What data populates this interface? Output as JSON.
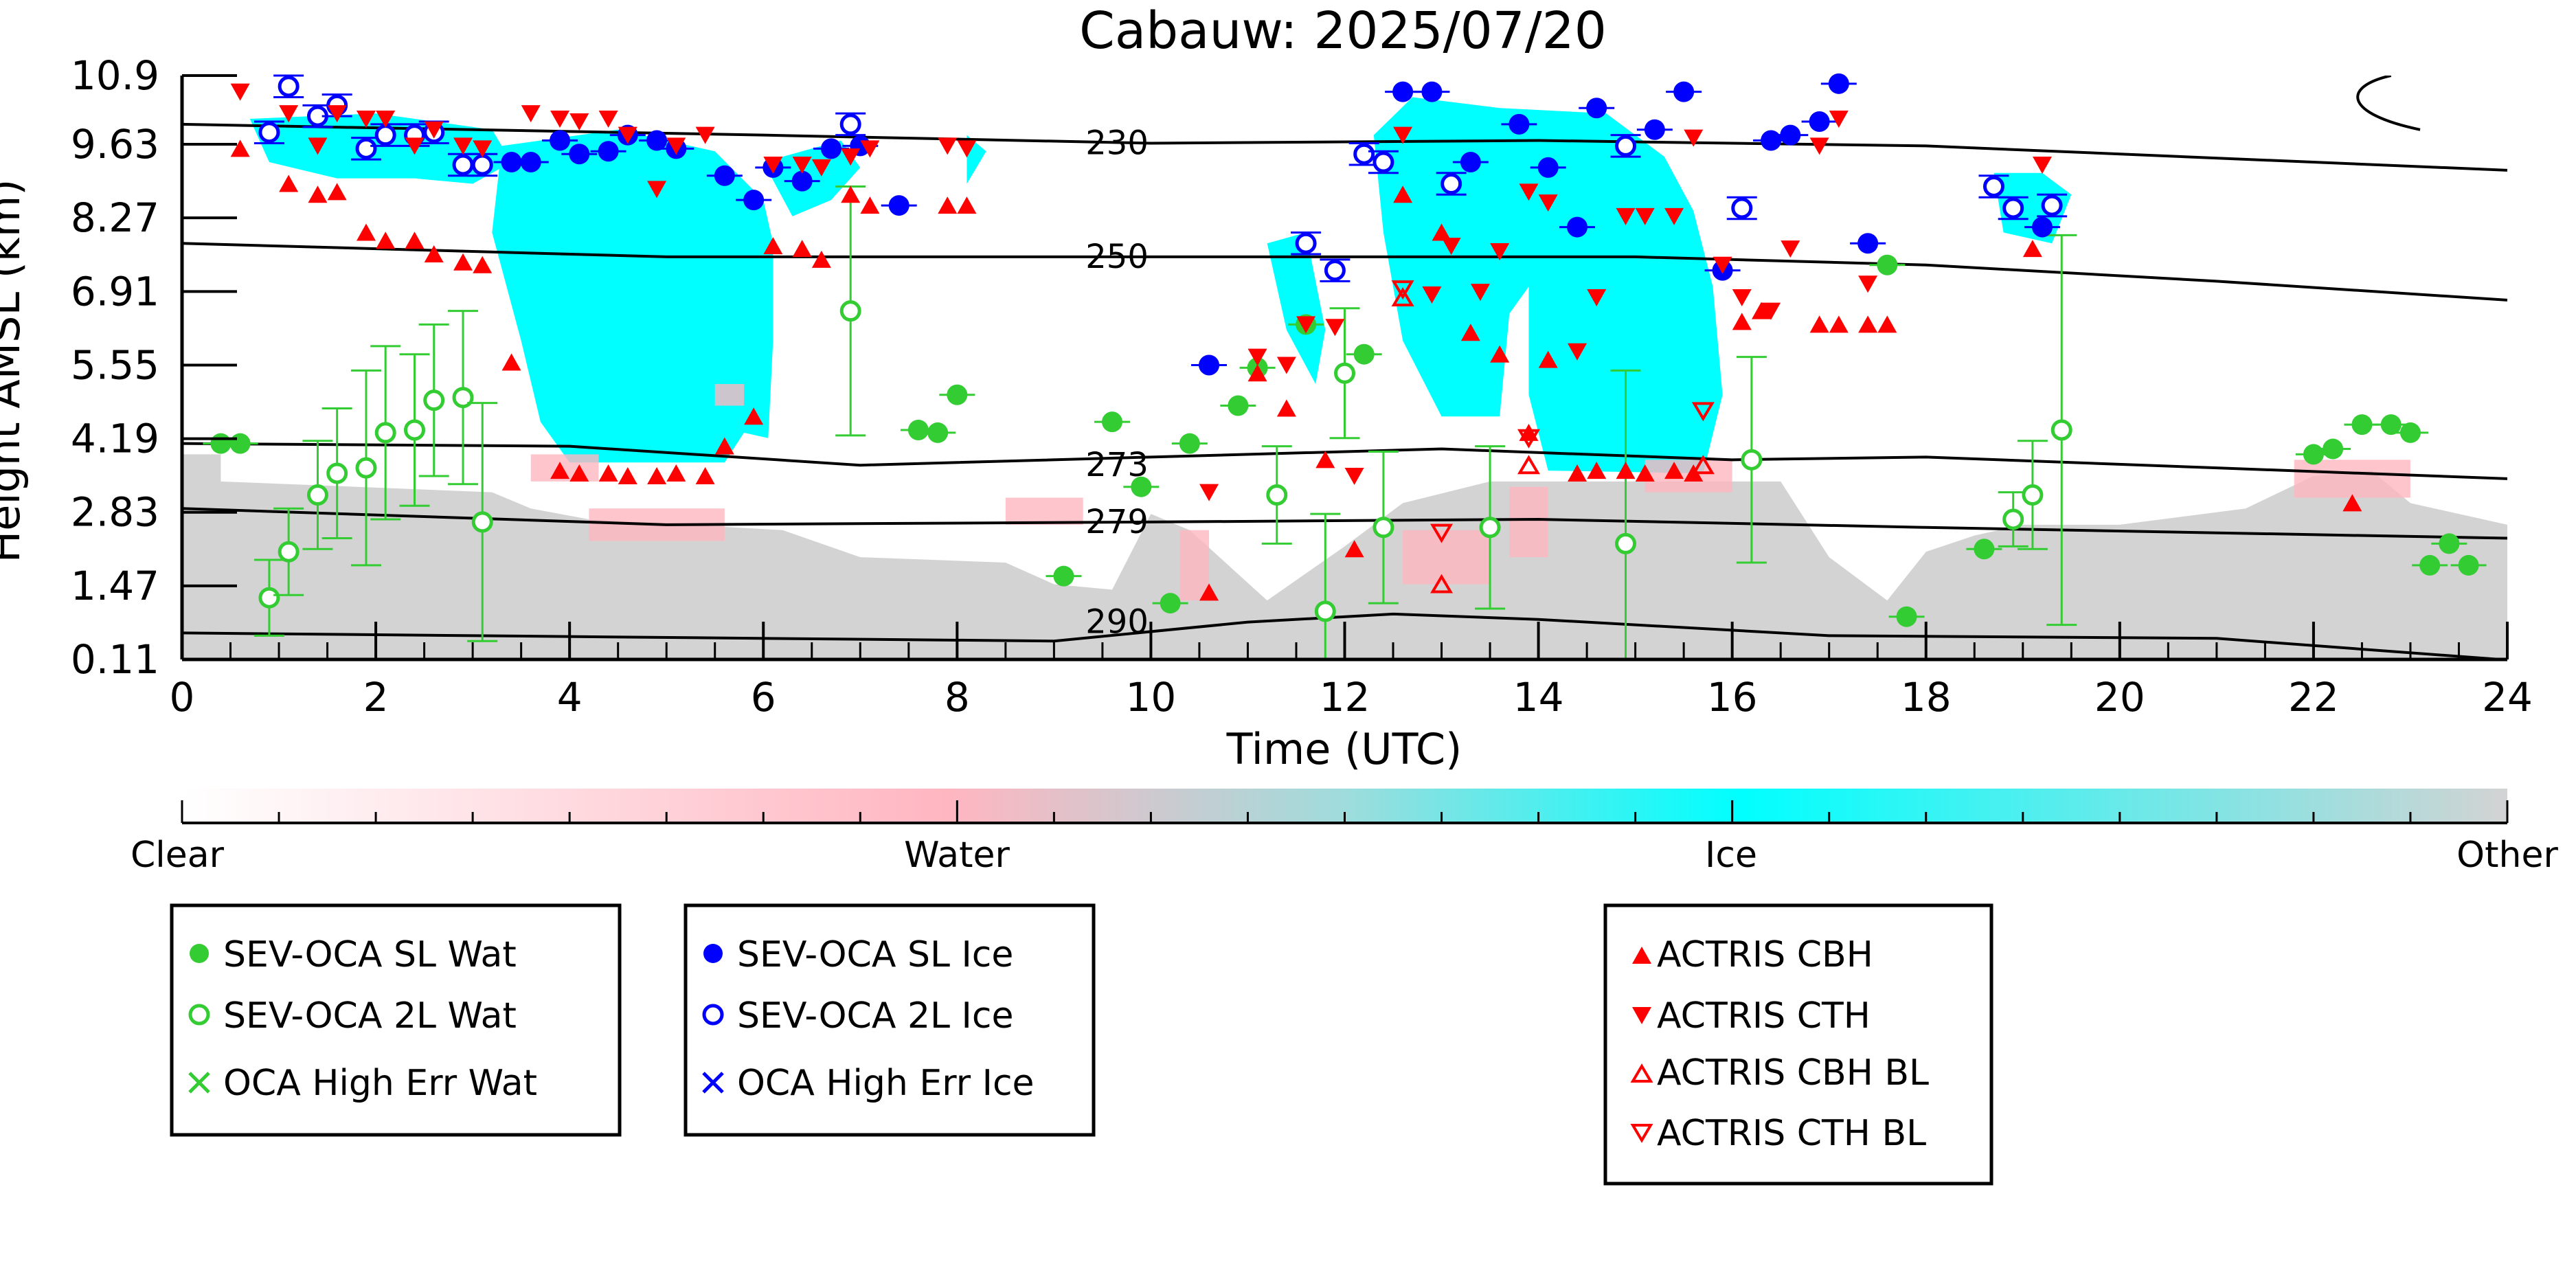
{
  "chart_data": {
    "type": "scatter",
    "title": "Cabauw: 2025/07/20",
    "xlabel": "Time (UTC)",
    "ylabel": "Height AMSL (km)",
    "xlim": [
      0,
      24
    ],
    "ylim": [
      0.11,
      10.9
    ],
    "x_ticks": [
      "0",
      "2",
      "4",
      "6",
      "8",
      "10",
      "12",
      "14",
      "16",
      "18",
      "20",
      "22",
      "24"
    ],
    "y_ticks": [
      "10.9",
      "9.63",
      "8.27",
      "6.91",
      "5.55",
      "4.19",
      "2.83",
      "1.47",
      "0.11"
    ],
    "colorbar": {
      "labels": [
        "Clear",
        "Water",
        "Ice",
        "Other"
      ],
      "colors": [
        "#ffffff",
        "#ffb6c1",
        "#00ffff",
        "#d3d3d3"
      ]
    },
    "contours": [
      {
        "label": "230",
        "x": [
          0,
          6,
          10,
          14,
          18,
          24
        ],
        "y": [
          10.0,
          9.8,
          9.65,
          9.7,
          9.6,
          9.15
        ]
      },
      {
        "label": "250",
        "x": [
          0,
          5,
          10,
          15,
          18,
          21,
          24
        ],
        "y": [
          7.8,
          7.55,
          7.55,
          7.55,
          7.4,
          7.1,
          6.75
        ]
      },
      {
        "label": "273",
        "x": [
          0,
          4,
          7,
          10,
          13,
          16,
          18,
          21,
          24
        ],
        "y": [
          4.1,
          4.05,
          3.7,
          3.85,
          4.0,
          3.8,
          3.85,
          3.65,
          3.45
        ]
      },
      {
        "label": "279",
        "x": [
          0,
          5,
          10,
          14,
          18,
          24
        ],
        "y": [
          2.9,
          2.6,
          2.65,
          2.7,
          2.55,
          2.35
        ]
      },
      {
        "label": "290",
        "x": [
          0,
          9,
          11,
          12.5,
          14,
          17,
          21,
          24
        ],
        "y": [
          0.6,
          0.45,
          0.8,
          0.95,
          0.85,
          0.55,
          0.5,
          0.1
        ]
      }
    ],
    "series": [
      {
        "name": "SEV-OCA SL Wat",
        "marker": "filled-circle",
        "color": "#33cc33",
        "x": [
          0.4,
          0.6,
          8.0,
          7.6,
          7.8,
          9.1,
          9.6,
          9.9,
          10.2,
          10.4,
          10.9,
          11.1,
          11.6,
          12.2,
          17.6,
          17.8,
          18.6,
          22.0,
          22.2,
          22.5,
          22.8,
          23.0,
          23.2,
          23.4,
          23.6
        ],
        "y": [
          4.1,
          4.1,
          5.0,
          4.35,
          4.3,
          1.65,
          4.5,
          3.3,
          1.15,
          4.1,
          4.8,
          5.5,
          6.3,
          5.75,
          7.4,
          0.9,
          2.15,
          3.9,
          4.0,
          4.45,
          4.45,
          4.3,
          1.85,
          2.25,
          1.85
        ],
        "yerr": 0
      },
      {
        "name": "SEV-OCA 2L Wat",
        "marker": "open-circle",
        "color": "#33cc33",
        "x": [
          0.9,
          1.1,
          1.4,
          1.6,
          1.9,
          2.1,
          2.4,
          2.6,
          2.9,
          3.1,
          6.9,
          11.3,
          11.8,
          12.0,
          12.4,
          13.5,
          14.9,
          16.2,
          18.9,
          19.1,
          19.4
        ],
        "y": [
          1.25,
          2.1,
          3.15,
          3.55,
          3.65,
          4.3,
          4.35,
          4.9,
          4.95,
          2.65,
          6.55,
          3.15,
          1.0,
          5.4,
          2.55,
          2.55,
          2.25,
          3.8,
          2.7,
          3.15,
          4.35
        ],
        "yerr": [
          0.7,
          0.8,
          1.0,
          1.2,
          1.8,
          1.6,
          1.4,
          1.4,
          1.6,
          2.2,
          2.3,
          0.9,
          1.8,
          1.2,
          1.4,
          1.5,
          3.2,
          1.9,
          0.5,
          1.0,
          3.6
        ]
      },
      {
        "name": "SEV-OCA SL Ice",
        "marker": "filled-circle",
        "color": "#0000ff",
        "x": [
          3.4,
          3.6,
          3.9,
          4.1,
          4.4,
          4.6,
          4.9,
          5.1,
          5.6,
          5.9,
          6.1,
          6.4,
          6.7,
          7.0,
          7.4,
          10.6,
          12.6,
          12.9,
          13.3,
          13.8,
          14.1,
          14.4,
          14.6,
          15.2,
          15.5,
          15.9,
          16.4,
          16.6,
          16.9,
          17.1,
          17.4,
          19.2
        ],
        "y": [
          9.3,
          9.3,
          9.7,
          9.45,
          9.5,
          9.8,
          9.7,
          9.55,
          9.05,
          8.6,
          9.2,
          8.95,
          9.55,
          9.6,
          8.5,
          5.55,
          10.6,
          10.6,
          9.3,
          10.0,
          9.2,
          8.1,
          10.3,
          9.9,
          10.6,
          7.3,
          9.7,
          9.8,
          10.05,
          10.75,
          7.8,
          8.1
        ],
        "yerr": 0
      },
      {
        "name": "SEV-OCA 2L Ice",
        "marker": "open-circle",
        "color": "#0000ff",
        "x": [
          0.9,
          1.1,
          1.4,
          1.6,
          1.9,
          2.1,
          2.4,
          2.6,
          2.9,
          3.1,
          6.9,
          11.6,
          11.9,
          12.2,
          12.4,
          13.1,
          14.9,
          16.1,
          18.7,
          18.9,
          19.3
        ],
        "y": [
          9.85,
          10.7,
          10.15,
          10.35,
          9.55,
          9.8,
          9.8,
          9.85,
          9.25,
          9.25,
          10.0,
          7.8,
          7.3,
          9.45,
          9.3,
          8.9,
          9.6,
          8.45,
          8.85,
          8.45,
          8.5
        ],
        "yerr": 0.2
      },
      {
        "name": "OCA High Err Wat",
        "marker": "x",
        "color": "#33cc33",
        "x": [],
        "y": []
      },
      {
        "name": "OCA High Err Ice",
        "marker": "x",
        "color": "#0000ff",
        "x": [],
        "y": []
      },
      {
        "name": "ACTRIS CBH",
        "marker": "triangle-up-filled",
        "color": "#ff0000",
        "x": [
          0.6,
          1.1,
          1.4,
          1.6,
          1.9,
          2.1,
          2.4,
          2.6,
          2.9,
          3.1,
          3.4,
          3.9,
          4.1,
          4.4,
          4.6,
          4.9,
          5.1,
          5.4,
          5.6,
          5.9,
          6.1,
          6.4,
          6.6,
          6.9,
          7.1,
          7.9,
          8.1,
          10.6,
          11.1,
          11.4,
          11.8,
          12.1,
          12.6,
          13.0,
          13.3,
          13.6,
          13.9,
          14.1,
          14.4,
          14.6,
          14.9,
          15.1,
          15.4,
          15.6,
          16.1,
          16.3,
          16.9,
          17.1,
          17.4,
          17.6,
          19.1,
          22.4
        ],
        "y": [
          9.55,
          8.9,
          8.7,
          8.75,
          8.0,
          7.85,
          7.85,
          7.6,
          7.45,
          7.4,
          5.6,
          3.6,
          3.55,
          3.55,
          3.5,
          3.5,
          3.55,
          3.5,
          4.05,
          4.6,
          7.75,
          7.7,
          7.5,
          8.7,
          8.5,
          8.5,
          8.5,
          1.35,
          5.4,
          4.75,
          3.8,
          2.15,
          8.7,
          8.0,
          6.15,
          5.75,
          4.3,
          5.65,
          3.55,
          3.6,
          3.6,
          3.55,
          3.6,
          3.55,
          6.35,
          6.55,
          6.3,
          6.3,
          6.3,
          6.3,
          7.7,
          3.0
        ],
        "yerr": 0
      },
      {
        "name": "ACTRIS CTH",
        "marker": "triangle-down-filled",
        "color": "#ff0000",
        "x": [
          0.6,
          1.1,
          1.4,
          1.6,
          1.9,
          2.1,
          2.4,
          2.6,
          2.9,
          3.1,
          3.6,
          3.9,
          4.1,
          4.4,
          4.6,
          4.9,
          5.1,
          5.4,
          6.1,
          6.4,
          6.6,
          6.9,
          7.1,
          7.9,
          8.1,
          10.6,
          11.1,
          11.4,
          11.6,
          11.9,
          12.1,
          12.6,
          12.9,
          13.1,
          13.4,
          13.6,
          13.9,
          14.1,
          14.4,
          14.6,
          14.9,
          15.1,
          15.4,
          15.6,
          15.9,
          16.1,
          16.4,
          16.6,
          16.9,
          17.1,
          17.4,
          19.2
        ],
        "y": [
          10.6,
          10.2,
          9.6,
          10.2,
          10.1,
          10.1,
          9.6,
          9.9,
          9.6,
          9.55,
          10.2,
          10.1,
          10.05,
          10.1,
          9.8,
          8.8,
          9.6,
          9.8,
          9.25,
          9.25,
          9.2,
          9.4,
          9.55,
          9.6,
          9.55,
          3.2,
          5.7,
          5.55,
          6.3,
          6.25,
          3.5,
          9.8,
          6.85,
          7.75,
          6.9,
          7.65,
          8.75,
          8.55,
          5.8,
          6.8,
          8.3,
          8.3,
          8.3,
          9.75,
          7.4,
          6.8,
          6.55,
          7.7,
          9.6,
          10.1,
          7.05,
          9.25
        ],
        "yerr": 0
      },
      {
        "name": "ACTRIS CBH BL",
        "marker": "triangle-up-open",
        "color": "#ff0000",
        "x": [
          12.6,
          13.0,
          13.9,
          15.7
        ],
        "y": [
          6.8,
          1.5,
          3.7,
          3.7
        ],
        "yerr": 0
      },
      {
        "name": "ACTRIS CTH BL",
        "marker": "triangle-down-open",
        "color": "#ff0000",
        "x": [
          12.6,
          13.0,
          13.9,
          15.7
        ],
        "y": [
          6.95,
          2.45,
          4.2,
          4.7
        ],
        "yerr": 0
      }
    ]
  },
  "legends": {
    "wat": [
      "SEV-OCA SL Wat",
      "SEV-OCA 2L Wat",
      "OCA High Err Wat"
    ],
    "ice": [
      "SEV-OCA SL Ice",
      "SEV-OCA 2L Ice",
      "OCA High Err Ice"
    ],
    "actris": [
      "ACTRIS CBH",
      "ACTRIS CTH",
      "ACTRIS CBH BL",
      "ACTRIS CTH BL"
    ]
  }
}
